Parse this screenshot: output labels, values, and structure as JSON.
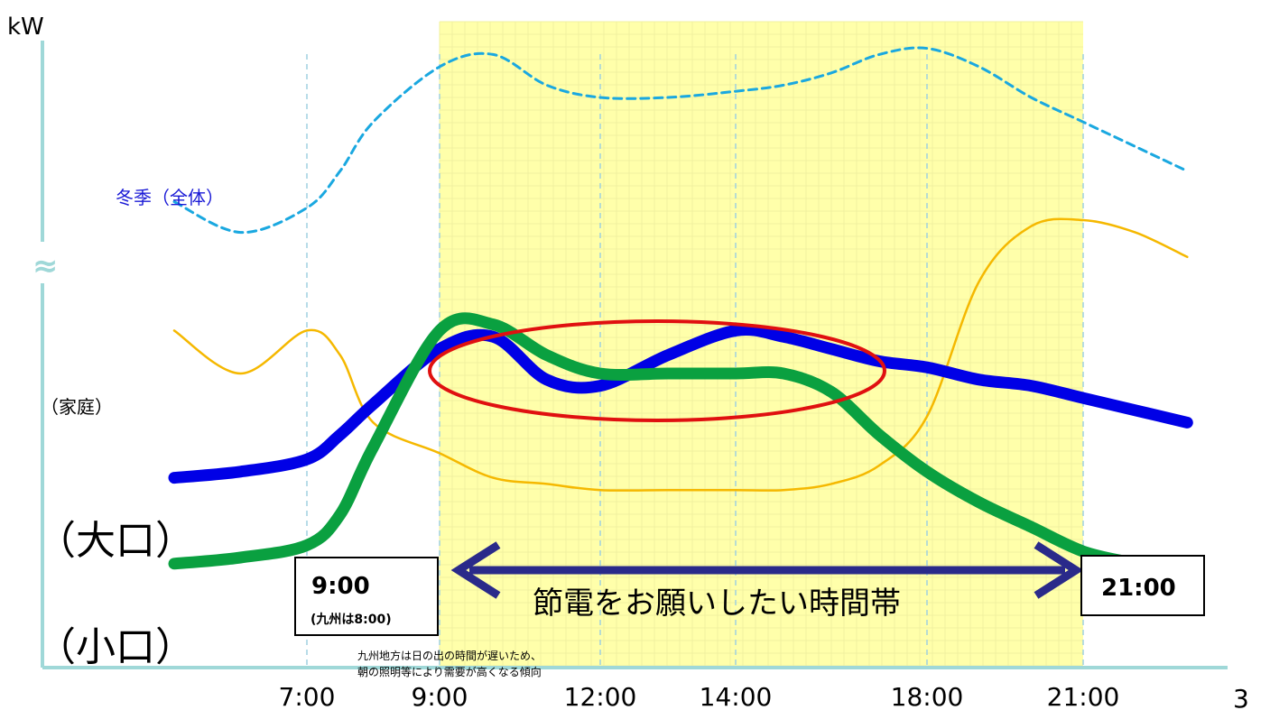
{
  "chart_data": {
    "type": "line",
    "ylabel": "kW",
    "axis_break_symbol": "≈",
    "x_ticks": [
      "7:00",
      "9:00",
      "12:00",
      "14:00",
      "18:00",
      "21:00"
    ],
    "highlight_band": {
      "start": "9:00",
      "end": "21:00",
      "label": "節電をお願いしたい時間帯",
      "start_label": "9:00",
      "start_sublabel": "(九州は8:00)",
      "end_label": "21:00",
      "color": "#ffffaa"
    },
    "note_lines": [
      "九州地方は日の出の時間が遅いため、",
      "朝の照明等により需要が高くなる傾向"
    ],
    "series": [
      {
        "key": "winter",
        "name": "冬季（全体）",
        "color": "#1aa8e0",
        "style": "dashed",
        "points": [
          [
            5.0,
            73
          ],
          [
            6.0,
            68
          ],
          [
            7.0,
            72
          ],
          [
            7.5,
            78
          ],
          [
            8.0,
            86
          ],
          [
            9.0,
            95
          ],
          [
            10.0,
            97
          ],
          [
            11.0,
            92
          ],
          [
            12.0,
            90
          ],
          [
            13.0,
            90
          ],
          [
            14.0,
            91
          ],
          [
            15.0,
            92
          ],
          [
            16.0,
            94
          ],
          [
            17.0,
            97
          ],
          [
            18.0,
            98
          ],
          [
            19.0,
            95
          ],
          [
            20.0,
            90
          ],
          [
            21.0,
            86
          ],
          [
            22.0,
            82
          ],
          [
            23.0,
            78
          ]
        ]
      },
      {
        "key": "household",
        "name": "（家庭）",
        "color": "#f5b800",
        "style": "solid-thin",
        "points": [
          [
            5.0,
            52
          ],
          [
            6.0,
            45
          ],
          [
            7.0,
            52
          ],
          [
            7.5,
            48
          ],
          [
            8.0,
            37
          ],
          [
            9.0,
            32
          ],
          [
            10.0,
            28
          ],
          [
            11.0,
            27
          ],
          [
            12.0,
            26
          ],
          [
            13.0,
            26
          ],
          [
            14.0,
            26
          ],
          [
            15.0,
            26
          ],
          [
            16.0,
            27
          ],
          [
            17.0,
            30
          ],
          [
            18.0,
            38
          ],
          [
            19.0,
            60
          ],
          [
            20.0,
            69
          ],
          [
            21.0,
            70
          ],
          [
            22.0,
            68
          ],
          [
            23.0,
            64
          ]
        ]
      },
      {
        "key": "large",
        "name": "（大口）",
        "color": "#0000e6",
        "style": "solid-thick",
        "points": [
          [
            5.0,
            28
          ],
          [
            6.0,
            29
          ],
          [
            7.0,
            31
          ],
          [
            7.5,
            35
          ],
          [
            8.0,
            40
          ],
          [
            9.0,
            49
          ],
          [
            10.0,
            51
          ],
          [
            11.0,
            44
          ],
          [
            12.0,
            43
          ],
          [
            13.0,
            48
          ],
          [
            14.0,
            52
          ],
          [
            15.0,
            51
          ],
          [
            16.0,
            49
          ],
          [
            17.0,
            47
          ],
          [
            18.0,
            46
          ],
          [
            19.0,
            44
          ],
          [
            20.0,
            43
          ],
          [
            21.0,
            41
          ],
          [
            22.0,
            39
          ],
          [
            23.0,
            37
          ]
        ]
      },
      {
        "key": "small",
        "name": "（小口）",
        "color": "#0aa040",
        "style": "solid-thick",
        "points": [
          [
            5.0,
            14
          ],
          [
            6.0,
            15
          ],
          [
            7.0,
            17
          ],
          [
            7.5,
            22
          ],
          [
            8.0,
            33
          ],
          [
            9.0,
            52
          ],
          [
            10.0,
            53
          ],
          [
            11.0,
            48
          ],
          [
            12.0,
            45
          ],
          [
            13.0,
            45
          ],
          [
            14.0,
            45
          ],
          [
            15.0,
            45
          ],
          [
            16.0,
            42
          ],
          [
            17.0,
            35
          ],
          [
            18.0,
            29
          ],
          [
            19.0,
            24
          ],
          [
            20.0,
            20
          ],
          [
            21.0,
            16
          ],
          [
            22.0,
            14
          ],
          [
            23.0,
            12
          ]
        ]
      }
    ],
    "annotation": {
      "type": "ellipse",
      "color": "#e01010"
    }
  },
  "page_number": "3"
}
